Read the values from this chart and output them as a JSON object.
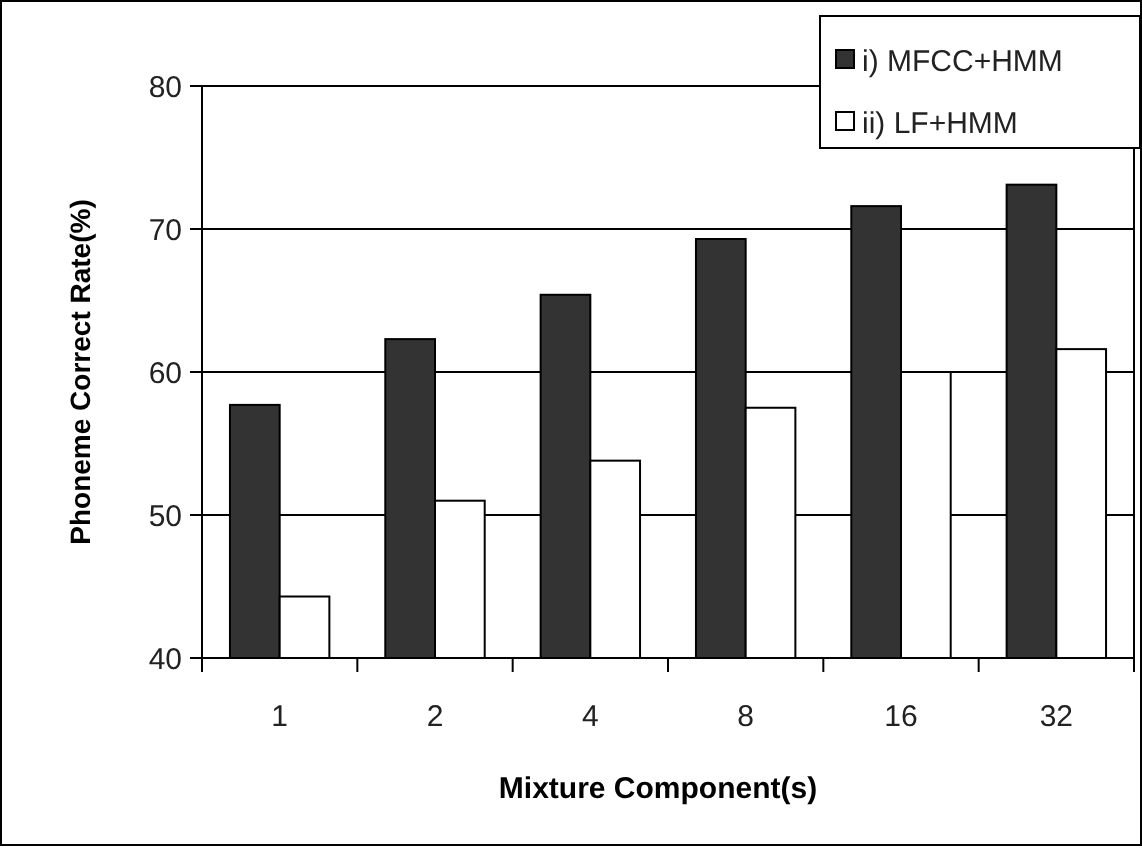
{
  "chart_data": {
    "type": "bar",
    "xlabel": "Mixture Component(s)",
    "ylabel": "Phoneme Correct Rate(%)",
    "categories": [
      "1",
      "2",
      "4",
      "8",
      "16",
      "32"
    ],
    "series": [
      {
        "name": "i) MFCC+HMM",
        "color": "#333333",
        "values": [
          57.7,
          62.3,
          65.4,
          69.3,
          71.6,
          73.1
        ]
      },
      {
        "name": "ii) LF+HMM",
        "color": "#ffffff",
        "values": [
          44.3,
          51.0,
          53.8,
          57.5,
          60.0,
          61.6
        ]
      }
    ],
    "ylim": [
      40,
      80
    ],
    "yticks": [
      40,
      50,
      60,
      70,
      80
    ],
    "grid": "y",
    "legend": "top right"
  }
}
